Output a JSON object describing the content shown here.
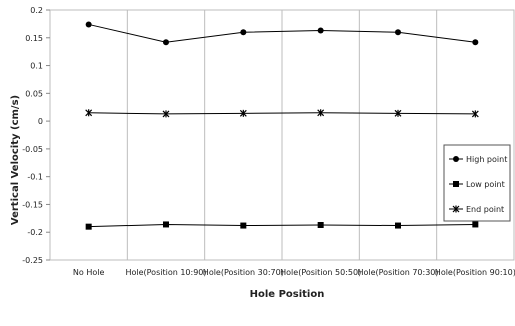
{
  "chart_data": {
    "type": "line",
    "xlabel": "Hole  Position",
    "ylabel": "Vertical  Velocity  (cm/s)",
    "categories": [
      "No Hole",
      "Hole(Position 10:90)",
      "Hole(Position 30:70)",
      "Hole(Position 50:50)",
      "Hole(Position 70:30)",
      "Hole(Position 90:10)"
    ],
    "ylim": [
      -0.25,
      0.2
    ],
    "yticks": [
      0.2,
      0.15,
      0.1,
      0.05,
      0,
      -0.05,
      -0.1,
      -0.15,
      -0.2,
      -0.25
    ],
    "ytick_labels": [
      "0.2",
      "0.15",
      "0.1",
      "0.05",
      "0",
      "-0.05",
      "-0.1",
      "-0.15",
      "-0.2",
      "-0.25"
    ],
    "grid": "vertical",
    "legend_position": "right",
    "series": [
      {
        "name": "High point",
        "marker": "circle",
        "values": [
          0.174,
          0.142,
          0.16,
          0.163,
          0.16,
          0.142
        ]
      },
      {
        "name": "Low point",
        "marker": "square",
        "values": [
          -0.19,
          -0.186,
          -0.188,
          -0.187,
          -0.188,
          -0.186
        ]
      },
      {
        "name": "End point",
        "marker": "star",
        "values": [
          0.015,
          0.013,
          0.014,
          0.015,
          0.014,
          0.013
        ]
      }
    ]
  }
}
